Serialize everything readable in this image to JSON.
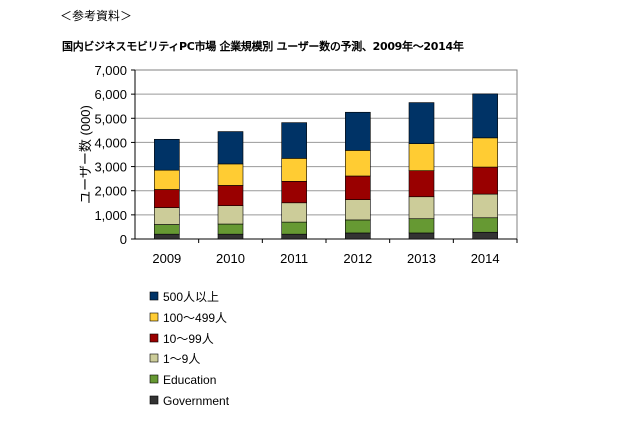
{
  "header": "＜参考資料＞",
  "chart_data": {
    "type": "bar",
    "stacked": true,
    "title": "国内ビジネスモビリティPC市場 企業規模別 ユーザー数の予測、2009年～2014年",
    "xlabel": "",
    "ylabel": "ユーザー数 (000)",
    "ylim": [
      0,
      7000
    ],
    "yticks": [
      0,
      1000,
      2000,
      3000,
      4000,
      5000,
      6000,
      7000
    ],
    "ytick_labels": [
      "0",
      "1,000",
      "2,000",
      "3,000",
      "4,000",
      "5,000",
      "6,000",
      "7,000"
    ],
    "grid": true,
    "legend_position": "bottom-left",
    "categories": [
      "2009",
      "2010",
      "2011",
      "2012",
      "2013",
      "2014"
    ],
    "series": [
      {
        "name": "Government",
        "color": "#333333",
        "values": [
          200,
          200,
          200,
          250,
          250,
          280
        ]
      },
      {
        "name": "Education",
        "color": "#669933",
        "values": [
          400,
          420,
          500,
          540,
          590,
          600
        ]
      },
      {
        "name": "1～9人",
        "color": "#CCCC99",
        "values": [
          700,
          760,
          800,
          840,
          910,
          980
        ]
      },
      {
        "name": "10～99人",
        "color": "#990000",
        "values": [
          750,
          840,
          890,
          980,
          1080,
          1120
        ]
      },
      {
        "name": "100～499人",
        "color": "#FFCC33",
        "values": [
          800,
          890,
          950,
          1060,
          1120,
          1210
        ]
      },
      {
        "name": "500人以上",
        "color": "#003366",
        "values": [
          1280,
          1340,
          1480,
          1580,
          1700,
          1820
        ]
      }
    ]
  }
}
